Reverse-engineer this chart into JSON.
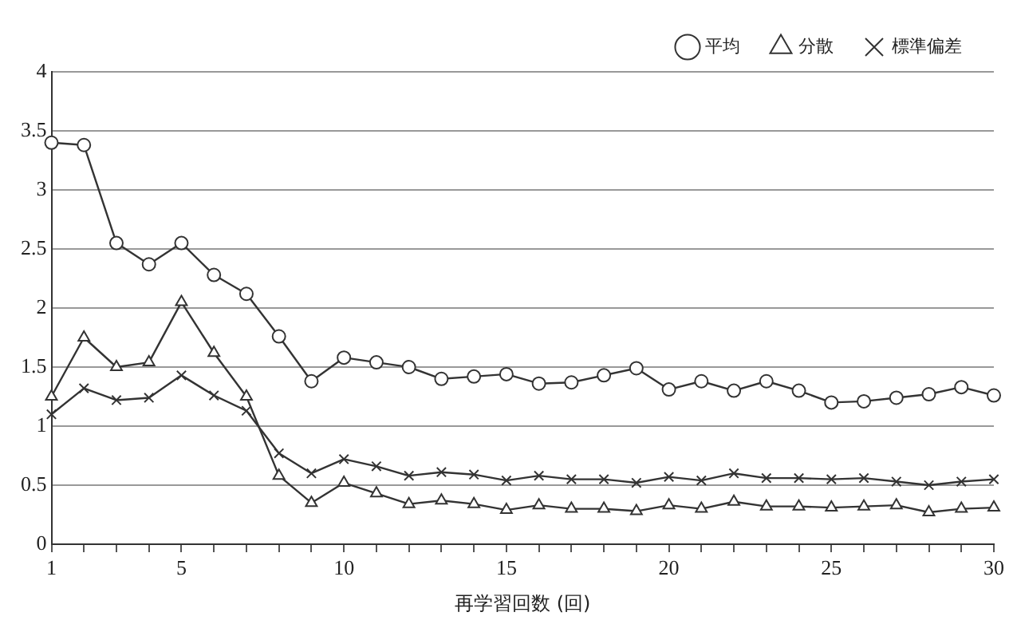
{
  "chart_data": {
    "type": "line",
    "xlabel": "再学習回数 (回)",
    "x": [
      1,
      2,
      3,
      4,
      5,
      6,
      7,
      8,
      9,
      10,
      11,
      12,
      13,
      14,
      15,
      16,
      17,
      18,
      19,
      20,
      21,
      22,
      23,
      24,
      25,
      26,
      27,
      28,
      29,
      30
    ],
    "xlim": [
      1,
      30
    ],
    "xticks": [
      1,
      {
        "value": 2,
        "label": null
      },
      {
        "value": 3,
        "label": null
      },
      {
        "value": 4,
        "label": null
      },
      5,
      {
        "value": 6,
        "label": null
      },
      {
        "value": 7,
        "label": null
      },
      {
        "value": 8,
        "label": null
      },
      {
        "value": 9,
        "label": null
      },
      10,
      {
        "value": 11,
        "label": null
      },
      {
        "value": 12,
        "label": null
      },
      {
        "value": 13,
        "label": null
      },
      {
        "value": 14,
        "label": null
      },
      15,
      {
        "value": 16,
        "label": null
      },
      {
        "value": 17,
        "label": null
      },
      {
        "value": 18,
        "label": null
      },
      {
        "value": 19,
        "label": null
      },
      20,
      {
        "value": 21,
        "label": null
      },
      {
        "value": 22,
        "label": null
      },
      {
        "value": 23,
        "label": null
      },
      {
        "value": 24,
        "label": null
      },
      25,
      {
        "value": 26,
        "label": null
      },
      {
        "value": 27,
        "label": null
      },
      {
        "value": 28,
        "label": null
      },
      {
        "value": 29,
        "label": null
      },
      30
    ],
    "ylim": [
      0,
      4
    ],
    "yticks": [
      0,
      0.5,
      1,
      1.5,
      2,
      2.5,
      3,
      3.5,
      4
    ],
    "grid": "y",
    "legend": "top right",
    "line_style": "solid",
    "series": [
      {
        "name": "平均",
        "color": "#333333",
        "marker": "circle",
        "values": [
          3.4,
          3.38,
          2.55,
          2.37,
          2.55,
          2.28,
          2.12,
          1.76,
          1.38,
          1.58,
          1.54,
          1.5,
          1.4,
          1.42,
          1.44,
          1.36,
          1.37,
          1.43,
          1.49,
          1.31,
          1.38,
          1.3,
          1.38,
          1.3,
          1.2,
          1.21,
          1.24,
          1.27,
          1.33,
          1.26
        ]
      },
      {
        "name": "分散",
        "color": "#333333",
        "marker": "triangle",
        "values": [
          1.25,
          1.75,
          1.5,
          1.54,
          2.05,
          1.62,
          1.25,
          0.58,
          0.35,
          0.52,
          0.43,
          0.34,
          0.37,
          0.34,
          0.29,
          0.33,
          0.3,
          0.3,
          0.28,
          0.33,
          0.3,
          0.36,
          0.32,
          0.32,
          0.31,
          0.32,
          0.33,
          0.27,
          0.3,
          0.31
        ]
      },
      {
        "name": "標準偏差",
        "color": "#333333",
        "marker": "cross",
        "values": [
          1.1,
          1.32,
          1.22,
          1.24,
          1.43,
          1.26,
          1.13,
          0.77,
          0.6,
          0.72,
          0.66,
          0.58,
          0.61,
          0.59,
          0.54,
          0.58,
          0.55,
          0.55,
          0.52,
          0.57,
          0.54,
          0.6,
          0.56,
          0.56,
          0.55,
          0.56,
          0.53,
          0.5,
          0.53,
          0.55
        ]
      }
    ]
  }
}
